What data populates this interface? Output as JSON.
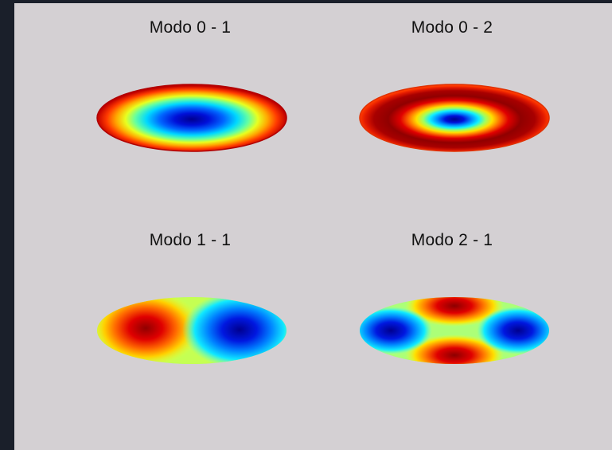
{
  "figure": {
    "background_color": "#d4d0d3",
    "colormap": "jet",
    "panels": [
      {
        "title": "Modo 0 - 1"
      },
      {
        "title": "Modo 0 - 2"
      },
      {
        "title": "Modo 1 - 1"
      },
      {
        "title": "Modo 2 - 1"
      }
    ]
  }
}
